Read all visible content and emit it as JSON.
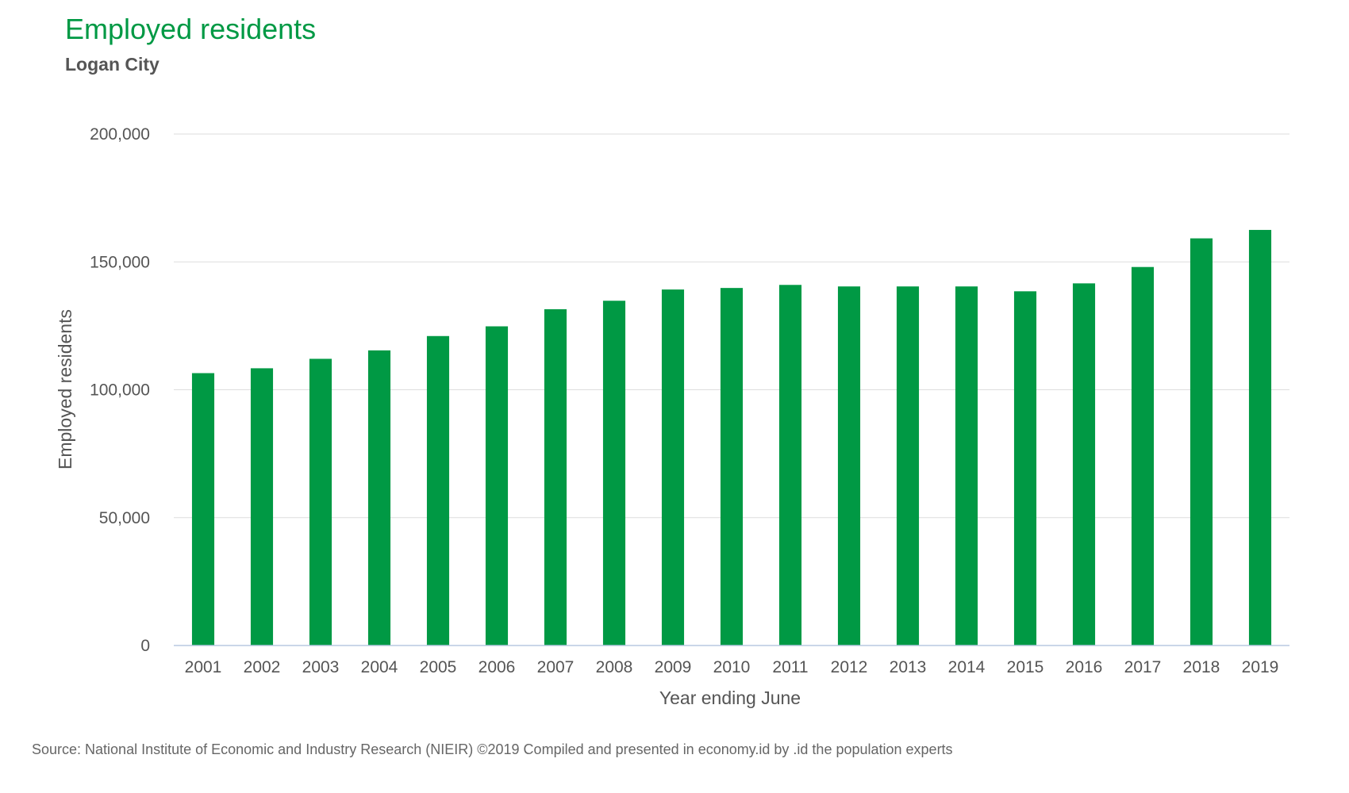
{
  "chart_data": {
    "type": "bar",
    "title": "Employed residents",
    "subtitle": "Logan City",
    "xlabel": "Year ending June",
    "ylabel": "Employed residents",
    "ylim": [
      0,
      200000
    ],
    "yticks": [
      0,
      50000,
      100000,
      150000,
      200000
    ],
    "ytick_labels": [
      "0",
      "50,000",
      "100,000",
      "150,000",
      "200,000"
    ],
    "grid": true,
    "categories": [
      "2001",
      "2002",
      "2003",
      "2004",
      "2005",
      "2006",
      "2007",
      "2008",
      "2009",
      "2010",
      "2011",
      "2012",
      "2013",
      "2014",
      "2015",
      "2016",
      "2017",
      "2018",
      "2019"
    ],
    "series": [
      {
        "values": [
          106500,
          108400,
          112100,
          115400,
          121000,
          124800,
          131500,
          134800,
          139200,
          139800,
          141000,
          140400,
          140400,
          140400,
          138500,
          141600,
          148000,
          159200,
          162500
        ]
      }
    ],
    "colors": {
      "bar": "#009944",
      "title": "#009944",
      "grid": "#dddddd",
      "axis": "#b8c8e0"
    }
  },
  "source": "Source: National Institute of Economic and Industry Research (NIEIR) ©2019 Compiled and presented in economy.id by .id the population experts"
}
